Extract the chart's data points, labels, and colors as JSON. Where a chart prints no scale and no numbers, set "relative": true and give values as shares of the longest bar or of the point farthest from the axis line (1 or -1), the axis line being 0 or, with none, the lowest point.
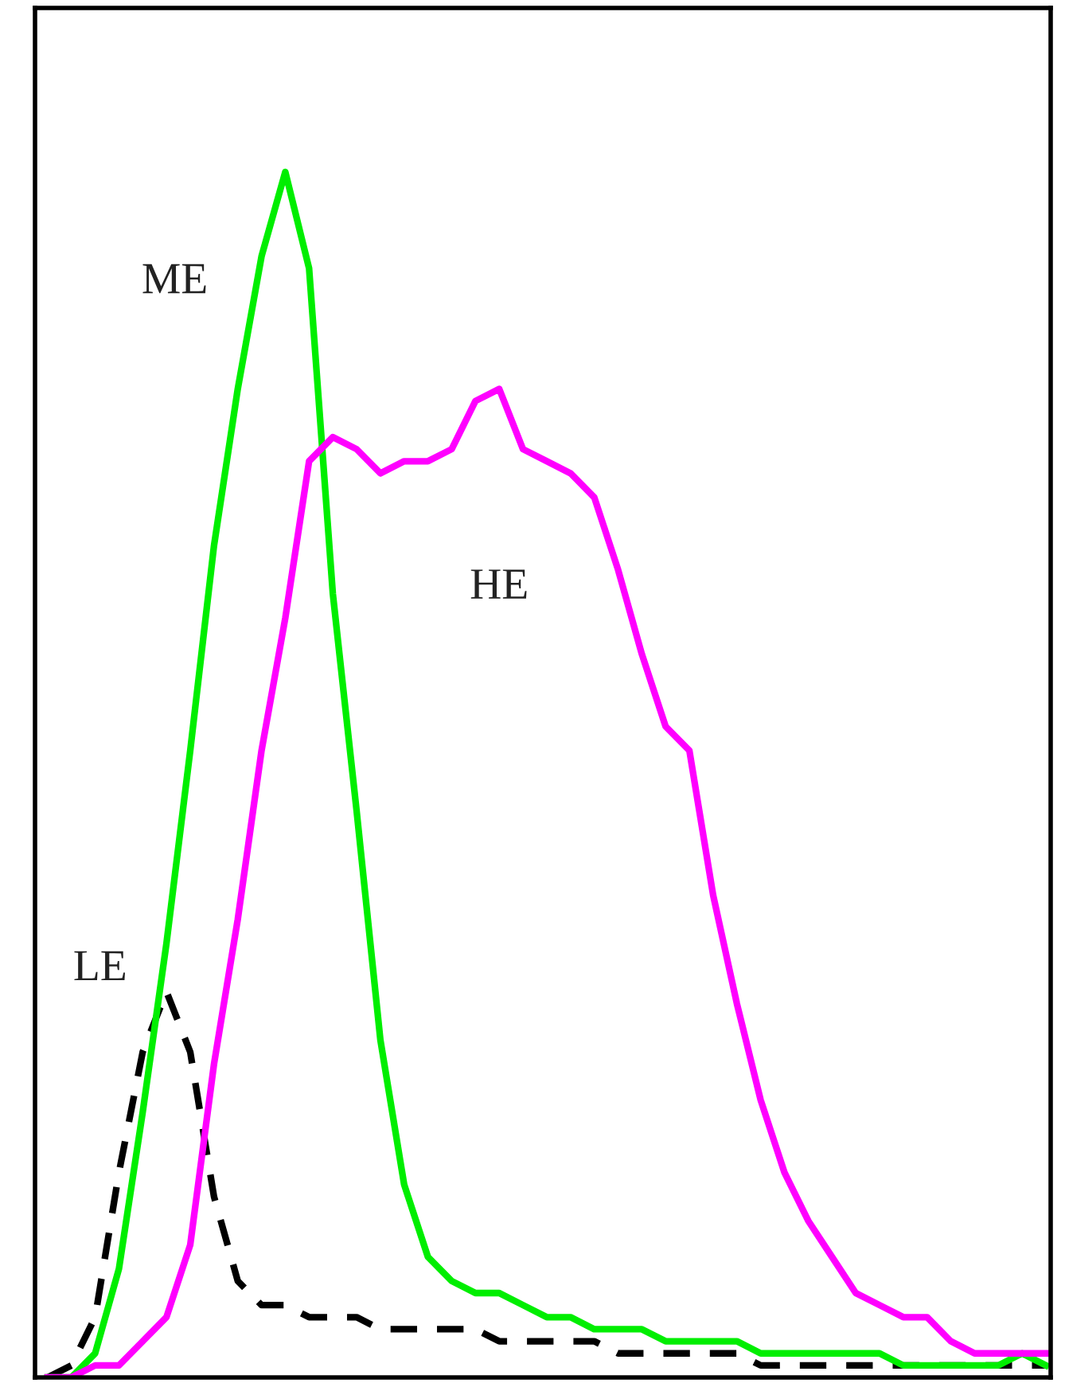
{
  "chart_data": {
    "type": "line",
    "relative": true,
    "legend": false,
    "marker": "none",
    "tick_labels": false,
    "categories": [
      null,
      null,
      null,
      null,
      null,
      null,
      null,
      null,
      null,
      null,
      null,
      null,
      null,
      null,
      null,
      null,
      null,
      null,
      null,
      null,
      null,
      null,
      null,
      null,
      null,
      null,
      null,
      null,
      null,
      null,
      null,
      null,
      null,
      null,
      null,
      null,
      null,
      null,
      null,
      null,
      null,
      null,
      null
    ],
    "series": [
      {
        "name": "LE",
        "color": "#000000",
        "line_style": "dashed",
        "values": [
          0,
          0.01,
          0.05,
          0.17,
          0.27,
          0.32,
          0.27,
          0.15,
          0.08,
          0.06,
          0.06,
          0.05,
          0.05,
          0.05,
          0.04,
          0.04,
          0.04,
          0.04,
          0.04,
          0.03,
          0.03,
          0.03,
          0.03,
          0.03,
          0.02,
          0.02,
          0.02,
          0.02,
          0.02,
          0.02,
          0.01,
          0.01,
          0.01,
          0.01,
          0.01,
          0.01,
          0.01,
          0.01,
          0.01,
          0.01,
          0.01,
          0.01,
          0.01
        ]
      },
      {
        "name": "ME",
        "color": "#00ee00",
        "line_style": "solid",
        "values": [
          0,
          0,
          0.02,
          0.09,
          0.22,
          0.36,
          0.52,
          0.69,
          0.82,
          0.93,
          1.0,
          0.92,
          0.65,
          0.47,
          0.28,
          0.16,
          0.1,
          0.08,
          0.07,
          0.07,
          0.06,
          0.05,
          0.05,
          0.04,
          0.04,
          0.04,
          0.03,
          0.03,
          0.03,
          0.03,
          0.02,
          0.02,
          0.02,
          0.02,
          0.02,
          0.02,
          0.01,
          0.01,
          0.01,
          0.01,
          0.01,
          0.02,
          0.01
        ]
      },
      {
        "name": "HE",
        "color": "#ff00ff",
        "line_style": "solid",
        "values": [
          0,
          0,
          0.01,
          0.01,
          0.03,
          0.05,
          0.11,
          0.26,
          0.38,
          0.52,
          0.63,
          0.76,
          0.78,
          0.77,
          0.75,
          0.76,
          0.76,
          0.77,
          0.81,
          0.82,
          0.77,
          0.76,
          0.75,
          0.73,
          0.67,
          0.6,
          0.54,
          0.52,
          0.4,
          0.31,
          0.23,
          0.17,
          0.13,
          0.1,
          0.07,
          0.06,
          0.05,
          0.05,
          0.03,
          0.02,
          0.02,
          0.02,
          0.02
        ]
      }
    ]
  }
}
